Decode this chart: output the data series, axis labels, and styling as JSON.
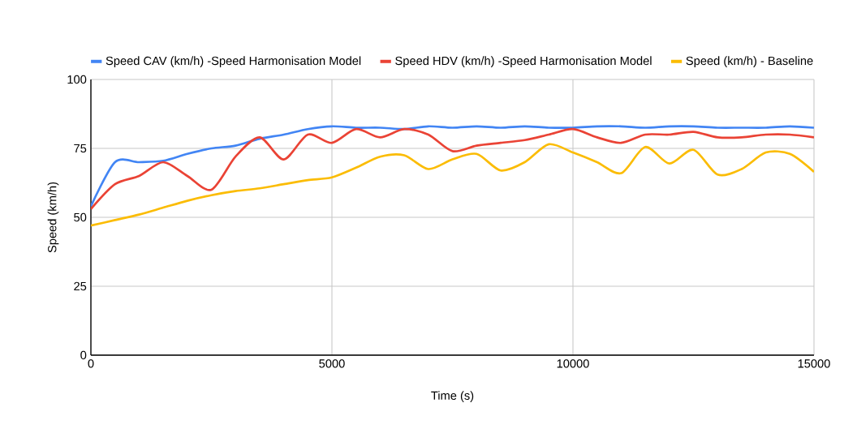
{
  "chart_data": {
    "type": "line",
    "xlabel": "Time (s)",
    "ylabel": "Speed (km/h)",
    "x": [
      0,
      500,
      1000,
      1500,
      2000,
      2500,
      3000,
      3500,
      4000,
      4500,
      5000,
      5500,
      6000,
      6500,
      7000,
      7500,
      8000,
      8500,
      9000,
      9500,
      10000,
      10500,
      11000,
      11500,
      12000,
      12500,
      13000,
      13500,
      14000,
      14500,
      15000
    ],
    "series": [
      {
        "name": "Speed CAV (km/h) -Speed Harmonisation Model",
        "color": "#4285f4",
        "values": [
          54,
          70,
          70,
          70.5,
          73,
          75,
          76,
          78.5,
          80,
          82,
          83,
          82.5,
          82.5,
          82,
          83,
          82.5,
          83,
          82.5,
          83,
          82.5,
          82.5,
          83,
          83,
          82.5,
          83,
          83,
          82.5,
          82.5,
          82.5,
          83,
          82.5
        ]
      },
      {
        "name": "Speed HDV (km/h) -Speed Harmonisation Model",
        "color": "#ea4335",
        "values": [
          53,
          62,
          65,
          70,
          65,
          60,
          72,
          79,
          71,
          80,
          77,
          82,
          79,
          82,
          80,
          74,
          76,
          77,
          78,
          80,
          82,
          79,
          77,
          80,
          80,
          81,
          79,
          79,
          80,
          80,
          79
        ]
      },
      {
        "name": "Speed (km/h) - Baseline",
        "color": "#fbbc04",
        "values": [
          47,
          49,
          51,
          53.5,
          56,
          58,
          59.5,
          60.5,
          62,
          63.5,
          64.5,
          68,
          72,
          72.5,
          67.5,
          71,
          73,
          67,
          70,
          76.5,
          73.5,
          70,
          66,
          75.5,
          69.5,
          74.5,
          65.5,
          67.5,
          73.5,
          73,
          66.5
        ]
      }
    ],
    "xlim": [
      0,
      15000
    ],
    "ylim": [
      0,
      100
    ],
    "xticks": [
      0,
      5000,
      10000,
      15000
    ],
    "yticks": [
      0,
      25,
      50,
      75,
      100
    ],
    "grid": true,
    "legend": "top",
    "marker": "none",
    "line_style": "solid"
  }
}
